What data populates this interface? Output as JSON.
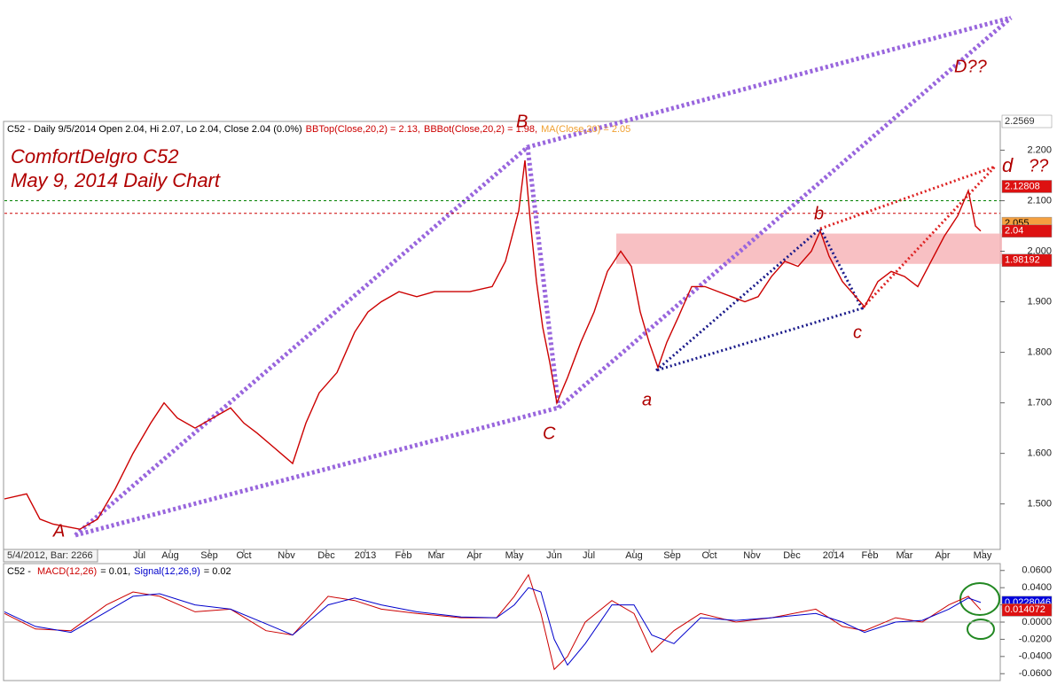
{
  "chart_data": [
    {
      "type": "line",
      "title": "ComfortDelgro C52",
      "subtitle": "May 9, 2014 Daily Chart",
      "header": [
        {
          "text": "C52 - Daily 9/5/2014 Open 2.04, Hi 2.07, Lo 2.04, Close 2.04 (0.0%)",
          "color": "#000000"
        },
        {
          "text": "BBTop(Close,20,2) = 2.13,",
          "color": "#cc0000"
        },
        {
          "text": "BBBot(Close,20,2) = 1.98,",
          "color": "#cc0000"
        },
        {
          "text": "MA(Close,20) = 2.05",
          "color": "#f0a030"
        }
      ],
      "footer_label": "5/4/2012, Bar: 2266",
      "annotations": [
        "A",
        "B",
        "C",
        "D??",
        "a",
        "b",
        "c",
        "d",
        "??"
      ],
      "x": [
        0,
        12.5,
        20,
        27.5,
        42.5,
        52.5,
        62.5,
        72.5,
        82.5,
        90,
        97.5,
        107.5,
        117.5,
        127.5,
        135,
        142.5,
        152.5,
        162.5,
        170,
        177.5,
        187.5,
        197.5,
        205,
        212.5,
        222.5,
        232.5,
        242.5,
        252.5,
        262.5,
        275,
        282.5,
        290,
        293.5,
        296.5,
        300,
        303.5,
        307.5,
        311.5,
        317.5,
        325,
        332.5,
        340,
        347.5,
        353.5,
        358.5,
        363.5,
        368.5,
        373.5,
        380,
        387.5,
        395,
        402.5,
        410,
        417.5,
        425,
        432.5,
        440,
        447.5,
        455,
        460,
        465,
        472.5,
        480,
        485,
        492.5,
        500,
        507.5,
        515,
        522.5,
        530,
        537.5,
        543.5,
        547.5,
        550.5
      ],
      "series": [
        {
          "name": "C52",
          "color": "#cc0000",
          "values": [
            1.51,
            1.52,
            1.47,
            1.46,
            1.45,
            1.47,
            1.53,
            1.6,
            1.66,
            1.7,
            1.67,
            1.65,
            1.67,
            1.69,
            1.66,
            1.64,
            1.61,
            1.58,
            1.66,
            1.72,
            1.76,
            1.84,
            1.88,
            1.9,
            1.92,
            1.91,
            1.92,
            1.92,
            1.92,
            1.93,
            1.98,
            2.08,
            2.18,
            2.06,
            1.94,
            1.85,
            1.78,
            1.7,
            1.75,
            1.82,
            1.88,
            1.96,
            2.0,
            1.97,
            1.88,
            1.82,
            1.77,
            1.82,
            1.87,
            1.93,
            1.93,
            1.92,
            1.91,
            1.9,
            1.91,
            1.95,
            1.98,
            1.97,
            2.0,
            2.04,
            1.99,
            1.94,
            1.91,
            1.89,
            1.94,
            1.96,
            1.95,
            1.93,
            1.98,
            2.03,
            2.07,
            2.12,
            2.05,
            2.04
          ]
        }
      ],
      "xlim": [
        0,
        561.5
      ],
      "xticks": [
        {
          "value": 76,
          "label": "Jul"
        },
        {
          "value": 93.5,
          "label": "Aug"
        },
        {
          "value": 115.5,
          "label": "Sep"
        },
        {
          "value": 135,
          "label": "Oct"
        },
        {
          "value": 159,
          "label": "Nov"
        },
        {
          "value": 181.5,
          "label": "Dec"
        },
        {
          "value": 203.5,
          "label": "2013"
        },
        {
          "value": 225,
          "label": "Feb"
        },
        {
          "value": 243.5,
          "label": "Mar"
        },
        {
          "value": 265,
          "label": "Apr"
        },
        {
          "value": 287.5,
          "label": "May"
        },
        {
          "value": 310,
          "label": "Jun"
        },
        {
          "value": 329.5,
          "label": "Jul"
        },
        {
          "value": 355,
          "label": "Aug"
        },
        {
          "value": 376.5,
          "label": "Sep"
        },
        {
          "value": 397.5,
          "label": "Oct"
        },
        {
          "value": 421.5,
          "label": "Nov"
        },
        {
          "value": 444,
          "label": "Dec"
        },
        {
          "value": 467.5,
          "label": "2014"
        },
        {
          "value": 488,
          "label": "Feb"
        },
        {
          "value": 507.5,
          "label": "Mar"
        },
        {
          "value": 529,
          "label": "Apr"
        },
        {
          "value": 551.5,
          "label": "May"
        }
      ],
      "ylim": [
        1.41,
        2.2569
      ],
      "yticks": [
        {
          "value": 1.5,
          "label": "1.500"
        },
        {
          "value": 1.6,
          "label": "1.600"
        },
        {
          "value": 1.7,
          "label": "1.700"
        },
        {
          "value": 1.8,
          "label": "1.800"
        },
        {
          "value": 1.9,
          "label": "1.900"
        },
        {
          "value": 2.0,
          "label": "2.000"
        },
        {
          "value": 2.1,
          "label": "2.100"
        },
        {
          "value": 2.2,
          "label": "2.200"
        }
      ],
      "hlines": [
        {
          "value": 2.1,
          "color": "#008000"
        },
        {
          "value": 2.075,
          "color": "#cc0000"
        }
      ],
      "zone": [
        1.975,
        2.035
      ],
      "right_labels": [
        {
          "value": 2.2569,
          "label": "2.2569",
          "color": "#ffffff",
          "text_color": "#333333"
        },
        {
          "value": 2.12808,
          "label": "2.12808",
          "color": "#dd1111",
          "text_color": "#ffffff"
        },
        {
          "value": 2.055,
          "label": "2.055",
          "color": "#f5a040",
          "text_color": "#000000"
        },
        {
          "value": 2.04,
          "label": "2.04",
          "color": "#dd1111",
          "text_color": "#ffffff"
        },
        {
          "value": 1.98192,
          "label": "1.98192",
          "color": "#dd1111",
          "text_color": "#ffffff"
        }
      ]
    },
    {
      "type": "line",
      "header": [
        {
          "text": "C52 - ",
          "color": "#000000"
        },
        {
          "text": "MACD(12,26)",
          "color": "#cc0000"
        },
        {
          "text": "= 0.01,",
          "color": "#000000"
        },
        {
          "text": "Signal(12,26,9)",
          "color": "#0000cc"
        },
        {
          "text": "= 0.02",
          "color": "#000000"
        }
      ],
      "x": [
        0,
        17.5,
        37.5,
        57.5,
        72.5,
        87.5,
        107.5,
        127.5,
        147.5,
        162.5,
        182.5,
        197.5,
        212.5,
        232.5,
        257.5,
        277.5,
        287.5,
        295.5,
        302.5,
        310,
        317.5,
        327.5,
        342.5,
        355,
        365,
        377.5,
        392.5,
        412.5,
        432.5,
        457.5,
        472.5,
        485,
        502.5,
        517.5,
        532.5,
        543.5,
        550.5
      ],
      "series": [
        {
          "name": "MACD",
          "color": "#cc0000",
          "values": [
            0.01,
            -0.008,
            -0.01,
            0.02,
            0.035,
            0.03,
            0.012,
            0.015,
            -0.01,
            -0.015,
            0.03,
            0.025,
            0.015,
            0.01,
            0.005,
            0.005,
            0.03,
            0.055,
            0.01,
            -0.055,
            -0.04,
            0.0,
            0.025,
            0.01,
            -0.035,
            -0.01,
            0.01,
            0.0,
            0.005,
            0.015,
            -0.005,
            -0.01,
            0.005,
            0.0,
            0.02,
            0.03,
            0.014072
          ]
        },
        {
          "name": "Signal",
          "color": "#0000cc",
          "values": [
            0.012,
            -0.005,
            -0.012,
            0.012,
            0.03,
            0.033,
            0.02,
            0.015,
            -0.002,
            -0.015,
            0.02,
            0.028,
            0.02,
            0.012,
            0.006,
            0.005,
            0.02,
            0.04,
            0.035,
            -0.02,
            -0.05,
            -0.025,
            0.02,
            0.02,
            -0.015,
            -0.025,
            0.005,
            0.002,
            0.005,
            0.01,
            0.0,
            -0.012,
            0.0,
            0.002,
            0.015,
            0.028,
            0.0228046
          ]
        }
      ],
      "xlim": [
        0,
        561.5
      ],
      "ylim": [
        -0.068,
        0.068
      ],
      "yticks": [
        {
          "value": 0.06,
          "label": "0.0600"
        },
        {
          "value": 0.04,
          "label": "0.0400"
        },
        {
          "value": 0.02,
          "label": "0.0200"
        },
        {
          "value": 0,
          "label": "0.0000"
        },
        {
          "value": -0.02,
          "label": "-0.0200"
        },
        {
          "value": -0.04,
          "label": "-0.0400"
        },
        {
          "value": -0.06,
          "label": "-0.0600"
        }
      ],
      "right_labels": [
        {
          "value": 0.0228046,
          "label": "0.0228046",
          "color": "#0000dd",
          "text_color": "#ffffff"
        },
        {
          "value": 0.014072,
          "label": "0.014072",
          "color": "#dd1111",
          "text_color": "#ffffff"
        }
      ]
    }
  ]
}
